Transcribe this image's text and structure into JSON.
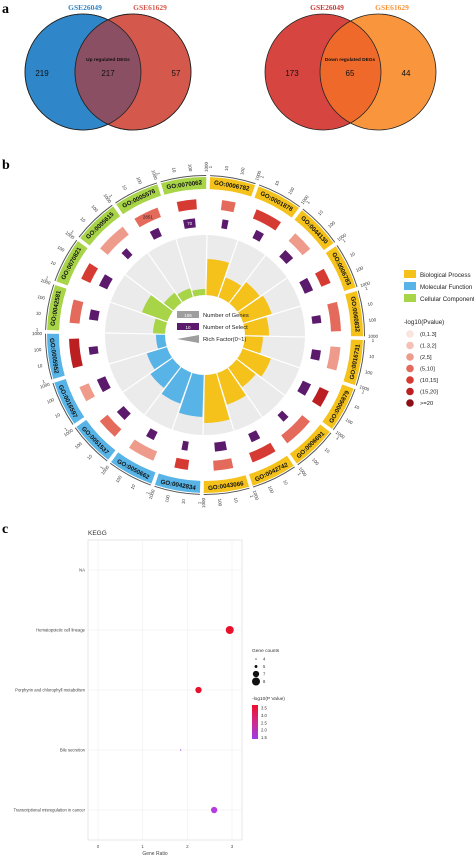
{
  "panels": {
    "a": "a",
    "b": "b",
    "c": "c"
  },
  "venn_up": {
    "left_label": "GSE26049",
    "right_label": "GSE61629",
    "center_label": "Up regulated DEGs",
    "left_only": "219",
    "overlap": "217",
    "right_only": "57",
    "colors": {
      "left": "#2f86c9",
      "right": "#d4594c",
      "overlap": "#8a4f63"
    }
  },
  "venn_down": {
    "left_label": "GSE26049",
    "right_label": "GSE61629",
    "center_label": "Down regulated DEGs",
    "left_only": "173",
    "overlap": "65",
    "right_only": "44",
    "colors": {
      "left": "#d64540",
      "right": "#f8953d",
      "overlap": "#ef6a2a"
    }
  },
  "go_circle": {
    "inner_legend": [
      "Number of Genes",
      "Number of Select",
      "Rich Factor(0~1)"
    ],
    "inner_legend_values": [
      "106",
      "10"
    ],
    "ontology_legend": [
      {
        "label": "Biological Process",
        "color": "#f4c21a"
      },
      {
        "label": "Molecular Function",
        "color": "#58b4e6"
      },
      {
        "label": "Cellular Component",
        "color": "#a8d447"
      }
    ],
    "pvalue_title": "-log10(Pvalue)",
    "pvalue_legend": [
      {
        "label": "(0,1.3]",
        "color": "#fbe3df"
      },
      {
        "label": "(1.3,2]",
        "color": "#f5c0b6"
      },
      {
        "label": "(2,5]",
        "color": "#ee9b8c"
      },
      {
        "label": "(5,10]",
        "color": "#e46a5b"
      },
      {
        "label": "(10,15]",
        "color": "#d63b33"
      },
      {
        "label": "(15,20]",
        "color": "#bb1f22"
      },
      {
        "label": ">=20",
        "color": "#8a1016"
      }
    ],
    "terms": [
      {
        "id": "GO:0006782",
        "onto": "BP",
        "rich": 0.6
      },
      {
        "id": "GO:0001878",
        "onto": "BP",
        "rich": 0.35
      },
      {
        "id": "GO:0044130",
        "onto": "BP",
        "rich": 0.45
      },
      {
        "id": "GO:0006783",
        "onto": "BP",
        "rich": 0.5
      },
      {
        "id": "GO:0060832",
        "onto": "BP",
        "rich": 0.4
      },
      {
        "id": "GO:0016731",
        "onto": "BP",
        "rich": 0.3
      },
      {
        "id": "GO:0006879",
        "onto": "BP",
        "rich": 0.5
      },
      {
        "id": "GO:0006691",
        "onto": "BP",
        "rich": 0.4
      },
      {
        "id": "GO:0042742",
        "onto": "BP",
        "rich": 0.55
      },
      {
        "id": "GO:0043066",
        "onto": "BP",
        "rich": 0.8
      },
      {
        "id": "GO:0042834",
        "onto": "MF",
        "rich": 0.7
      },
      {
        "id": "GO:0050662",
        "onto": "MF",
        "rich": 0.55
      },
      {
        "id": "GO:0051537",
        "onto": "MF",
        "rich": 0.45
      },
      {
        "id": "GO:0016597",
        "onto": "MF",
        "rich": 0.35
      },
      {
        "id": "GO:0005952",
        "onto": "MF",
        "rich": 0.15
      },
      {
        "id": "GO:0042581",
        "onto": "CC",
        "rich": 0.2
      },
      {
        "id": "GO:0070821",
        "onto": "CC",
        "rich": 0.45
      },
      {
        "id": "GO:0005615",
        "onto": "CC",
        "rich": 0.2
      },
      {
        "id": "GO:0005576",
        "onto": "CC",
        "rich": 0.15
      },
      {
        "id": "GO:0070062",
        "onto": "CC",
        "rich": 0.1
      }
    ],
    "scale_ticks": [
      "1",
      "10",
      "100",
      "1000"
    ],
    "gene_counts": [
      "",
      "",
      "",
      "",
      "",
      "",
      "",
      "",
      "",
      "",
      "",
      "",
      "",
      "",
      "",
      "",
      "",
      "",
      "2851",
      ""
    ],
    "select_counts": [
      "",
      "",
      "",
      "",
      "",
      "",
      "",
      "",
      "",
      "",
      "",
      "",
      "",
      "",
      "",
      "",
      "",
      "",
      "",
      "70"
    ]
  },
  "kegg": {
    "title": "KEGG",
    "xlabel": "Gene Ratio",
    "pathways": [
      "NA",
      "Hematopoietic cell lineage",
      "Porphyrin and chlorophyll metabolism",
      "Bile secretion",
      "Transcriptional misregulation in cancer"
    ],
    "legend_size_title": "Gene counts",
    "legend_size_labels": [
      "4",
      "5",
      "7",
      "8"
    ],
    "legend_color_title": "-log10(P Value)",
    "legend_color_labels": [
      "3.5",
      "3.0",
      "2.5",
      "2.0",
      "1.5"
    ]
  },
  "chart_data": {
    "type": "scatter",
    "title": "KEGG",
    "xlabel": "Gene Ratio",
    "ylabel": "",
    "categories": [
      "NA",
      "Hematopoietic cell lineage",
      "Porphyrin and chlorophyll metabolism",
      "Bile secretion",
      "Transcriptional misregulation in cancer"
    ],
    "x_ticks": [
      "0",
      "1",
      "2",
      "3"
    ],
    "xlim": [
      0,
      3
    ],
    "points": [
      {
        "pathway": "Hematopoietic cell lineage",
        "gene_ratio": 2.95,
        "gene_count": 8,
        "neg_log10_p": 3.6,
        "color": "#e8102a"
      },
      {
        "pathway": "Porphyrin and chlorophyll metabolism",
        "gene_ratio": 2.25,
        "gene_count": 7,
        "neg_log10_p": 3.4,
        "color": "#e8102a"
      },
      {
        "pathway": "Bile secretion",
        "gene_ratio": 1.85,
        "gene_count": 4,
        "neg_log10_p": 1.5,
        "color": "#8b3fd6"
      },
      {
        "pathway": "Transcriptional misregulation in cancer",
        "gene_ratio": 2.6,
        "gene_count": 7,
        "neg_log10_p": 1.6,
        "color": "#b43ce0"
      }
    ],
    "grid": true,
    "legend": "right"
  }
}
